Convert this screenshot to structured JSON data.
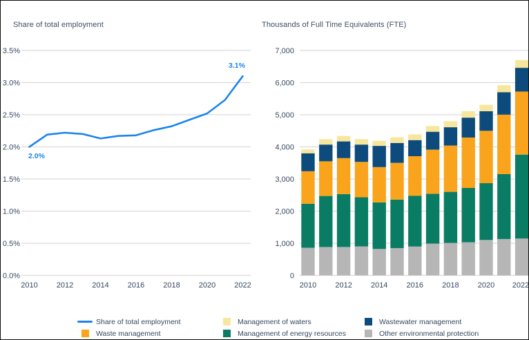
{
  "page": {
    "background": "#ffffff",
    "border_color": "#0b0b0b",
    "text_color": "#35485e",
    "gridline_color": "#dadada"
  },
  "chart_data": [
    {
      "type": "line",
      "title": "Share of total employment",
      "x": [
        2010,
        2011,
        2012,
        2013,
        2014,
        2015,
        2016,
        2017,
        2018,
        2019,
        2020,
        2021,
        2022
      ],
      "series": [
        {
          "name": "Share of total employment",
          "color": "#1b84ec",
          "values": [
            2.0,
            2.19,
            2.22,
            2.2,
            2.13,
            2.17,
            2.18,
            2.26,
            2.32,
            2.42,
            2.52,
            2.73,
            3.1
          ]
        }
      ],
      "ylim": [
        0,
        3.5
      ],
      "y_tick_labels": [
        "3.5%",
        "3.0%",
        "2.5%",
        "2.0%",
        "1.5%",
        "1.0%",
        "0.5%",
        "0.0%"
      ],
      "x_tick_labels": [
        "2010",
        "2012",
        "2014",
        "2016",
        "2018",
        "2020",
        "2022"
      ],
      "grid": "horizontal",
      "legend_position": "bottom",
      "annotations": [
        {
          "x": 2010,
          "y": 2.0,
          "label": "2.0%",
          "position": "below"
        },
        {
          "x": 2022,
          "y": 3.1,
          "label": "3.1%",
          "position": "above"
        }
      ]
    },
    {
      "type": "bar",
      "stacked": true,
      "title": "Thousands of Full Time Equivalents (FTE)",
      "categories": [
        2010,
        2011,
        2012,
        2013,
        2014,
        2015,
        2016,
        2017,
        2018,
        2019,
        2020,
        2021,
        2022
      ],
      "series": [
        {
          "name": "Other environmental protection",
          "color": "#b6b6b6",
          "values": [
            860,
            880,
            885,
            900,
            820,
            850,
            900,
            990,
            1010,
            1030,
            1100,
            1130,
            1150
          ]
        },
        {
          "name": "Management of energy resources",
          "color": "#0a7c64",
          "values": [
            1370,
            1590,
            1645,
            1530,
            1450,
            1510,
            1580,
            1550,
            1590,
            1690,
            1770,
            2020,
            2610
          ]
        },
        {
          "name": "Waste management",
          "color": "#f9a41c",
          "values": [
            1010,
            1080,
            1120,
            1100,
            1100,
            1140,
            1230,
            1370,
            1440,
            1570,
            1630,
            1850,
            1960
          ]
        },
        {
          "name": "Wastewater management",
          "color": "#0e4b7d",
          "values": [
            560,
            520,
            520,
            540,
            660,
            620,
            500,
            560,
            570,
            620,
            610,
            700,
            740
          ]
        },
        {
          "name": "Management of waters",
          "color": "#f7e79e",
          "values": [
            120,
            170,
            170,
            170,
            160,
            180,
            180,
            180,
            190,
            200,
            200,
            220,
            240
          ]
        }
      ],
      "ylim": [
        0,
        7000
      ],
      "y_tick_labels": [
        "7,000",
        "6,000",
        "5,000",
        "4,000",
        "3,000",
        "2,000",
        "1,000",
        "0"
      ],
      "x_tick_labels": [
        "2010",
        "2012",
        "2014",
        "2016",
        "2018",
        "2020",
        "2022"
      ],
      "grid": "horizontal",
      "legend_position": "bottom"
    }
  ],
  "legend": {
    "columns": [
      {
        "items": [
          {
            "label": "Share of total employment",
            "swatch": "line",
            "color": "#1b84ec"
          },
          {
            "label": "Waste management",
            "swatch": "square",
            "color": "#f9a41c"
          }
        ]
      },
      {
        "items": [
          {
            "label": "Management of waters",
            "swatch": "square",
            "color": "#f7e79e"
          },
          {
            "label": "Management of energy resources",
            "swatch": "square",
            "color": "#0a7c64"
          }
        ]
      },
      {
        "items": [
          {
            "label": "Wastewater management",
            "swatch": "square",
            "color": "#0e4b7d"
          },
          {
            "label": "Other environmental protection",
            "swatch": "square",
            "color": "#b6b6b6"
          }
        ]
      }
    ]
  }
}
